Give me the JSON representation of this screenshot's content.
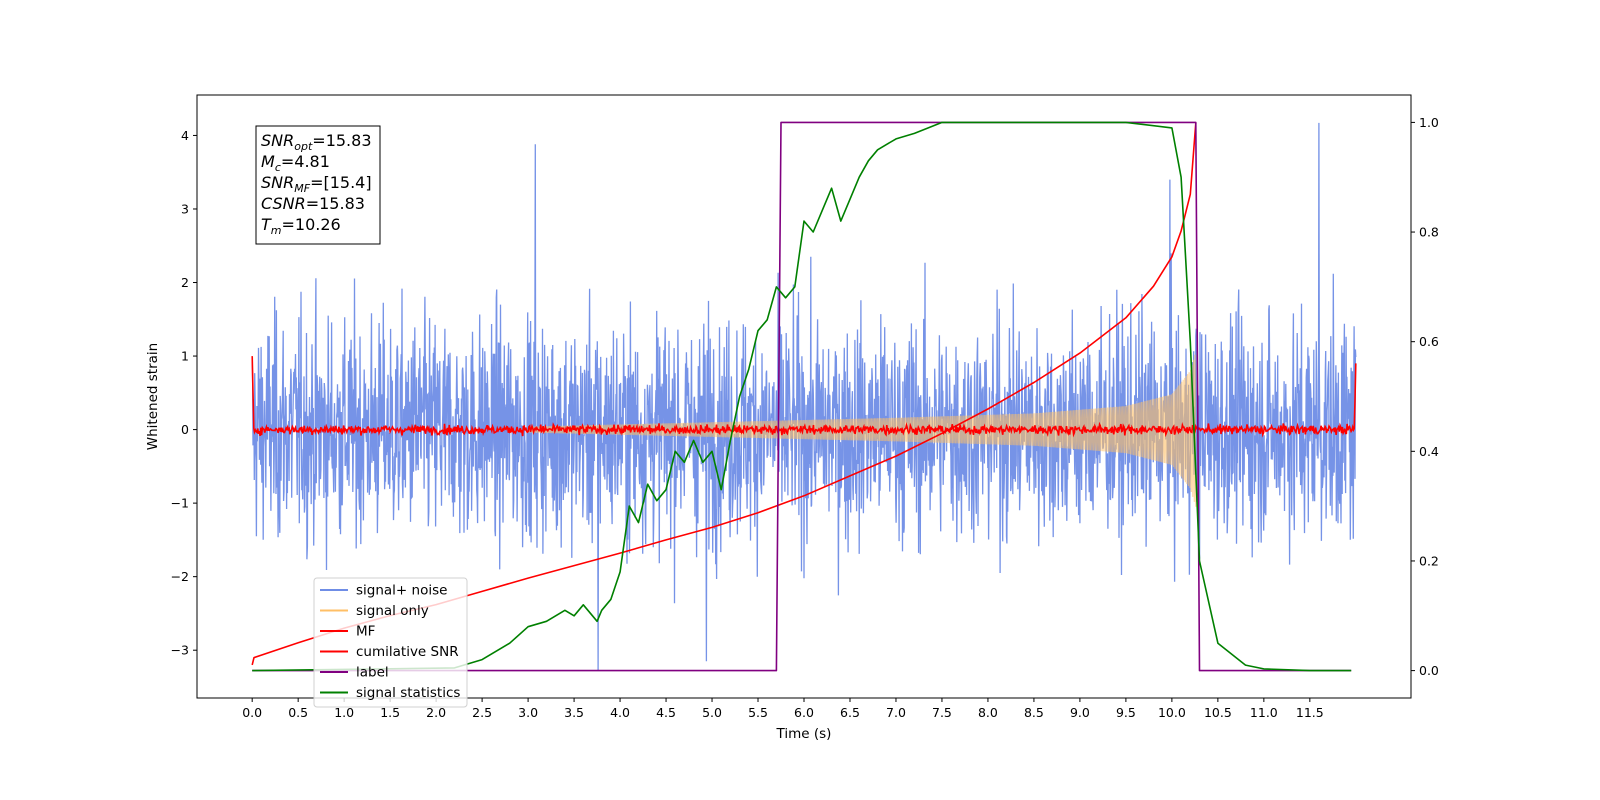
{
  "chart_data": {
    "type": "line",
    "title": "",
    "xlabel": "Time (s)",
    "ylabel": "Whitened strain",
    "xlim": [
      -0.6,
      12.6
    ],
    "ylim": [
      -3.65,
      4.55
    ],
    "y2lim": [
      -0.05,
      1.05
    ],
    "x_ticks": [
      0.0,
      0.5,
      1.0,
      1.5,
      2.0,
      2.5,
      3.0,
      3.5,
      4.0,
      4.5,
      5.0,
      5.5,
      6.0,
      6.5,
      7.0,
      7.5,
      8.0,
      8.5,
      9.0,
      9.5,
      10.0,
      10.5,
      11.0,
      11.5
    ],
    "x_tick_labels": [
      "0.0",
      "0.5",
      "1.0",
      "1.5",
      "2.0",
      "2.5",
      "3.0",
      "3.5",
      "4.0",
      "4.5",
      "5.0",
      "5.5",
      "6.0",
      "6.5",
      "7.0",
      "7.5",
      "8.0",
      "8.5",
      "9.0",
      "9.5",
      "10.0",
      "10.5",
      "11.0",
      "11.5"
    ],
    "y_ticks": [
      -3,
      -2,
      -1,
      0,
      1,
      2,
      3,
      4
    ],
    "y_tick_labels": [
      "−3",
      "−2",
      "−1",
      "0",
      "1",
      "2",
      "3",
      "4"
    ],
    "y2_ticks": [
      0.0,
      0.2,
      0.4,
      0.6,
      0.8,
      1.0
    ],
    "y2_tick_labels": [
      "0.0",
      "0.2",
      "0.4",
      "0.6",
      "0.8",
      "1.0"
    ],
    "grid": false,
    "legend_position": "lower-left",
    "legend": [
      {
        "label": "signal+ noise",
        "color": "#6f8de6"
      },
      {
        "label": "signal only",
        "color": "#ffbf66"
      },
      {
        "label": "MF",
        "color": "#ff0000"
      },
      {
        "label": "cumilative SNR",
        "color": "#ff0000"
      },
      {
        "label": "label",
        "color": "#800080"
      },
      {
        "label": "signal statistics",
        "color": "#008000"
      }
    ],
    "annotation": [
      {
        "sym": "SNR",
        "sub": "opt",
        "rest": "=15.83"
      },
      {
        "sym": "M",
        "sub": "c",
        "rest": "=4.81"
      },
      {
        "sym": "SNR",
        "sub": "MF",
        "rest": "=[15.4]"
      },
      {
        "sym": "CSNR",
        "sub": "",
        "rest": "=15.83"
      },
      {
        "sym": "T",
        "sub": "m",
        "rest": "=10.26"
      }
    ],
    "series": [
      {
        "name": "signal+ noise",
        "axis": "left",
        "color": "#6f8de6",
        "style": "noise",
        "x_range": [
          0.0,
          12.0
        ],
        "typical_band": [
          -1.7,
          1.7
        ],
        "extreme_max": 4.17,
        "extreme_min": -3.27,
        "spikes": [
          [
            3.08,
            3.88
          ],
          [
            11.6,
            4.17
          ],
          [
            9.98,
            3.4
          ],
          [
            3.76,
            -3.27
          ],
          [
            4.94,
            -3.15
          ]
        ]
      },
      {
        "name": "signal only",
        "axis": "left",
        "color": "#ffbf66",
        "style": "chirp",
        "x_range": [
          3.0,
          10.26
        ],
        "amplitude": [
          [
            3.0,
            0.04
          ],
          [
            5.0,
            0.1
          ],
          [
            7.0,
            0.16
          ],
          [
            8.5,
            0.22
          ],
          [
            9.5,
            0.32
          ],
          [
            10.0,
            0.48
          ],
          [
            10.2,
            0.8
          ],
          [
            10.26,
            1.05
          ]
        ]
      },
      {
        "name": "MF",
        "axis": "left",
        "color": "#ff0000",
        "style": "noise",
        "x_range": [
          0.0,
          12.0
        ],
        "typical_band": [
          -0.08,
          0.08
        ],
        "edge_values": [
          [
            0.0,
            1.0
          ],
          [
            12.0,
            0.9
          ]
        ]
      },
      {
        "name": "cumilative SNR",
        "axis": "left",
        "color": "#ff0000",
        "x": [
          0.0,
          0.02,
          0.5,
          1.0,
          1.5,
          2.0,
          2.5,
          3.0,
          3.5,
          4.0,
          4.5,
          5.0,
          5.5,
          6.0,
          6.5,
          7.0,
          7.5,
          8.0,
          8.5,
          9.0,
          9.5,
          9.8,
          10.0,
          10.1,
          10.2,
          10.26
        ],
        "y": [
          -3.2,
          -3.1,
          -2.9,
          -2.7,
          -2.53,
          -2.38,
          -2.2,
          -2.02,
          -1.85,
          -1.68,
          -1.5,
          -1.33,
          -1.13,
          -0.9,
          -0.63,
          -0.36,
          -0.05,
          0.28,
          0.64,
          1.04,
          1.52,
          1.95,
          2.35,
          2.7,
          3.2,
          4.17
        ]
      },
      {
        "name": "label",
        "axis": "right",
        "color": "#800080",
        "x": [
          0.0,
          5.7,
          5.75,
          10.26,
          10.3,
          11.95
        ],
        "y": [
          0.0,
          0.0,
          1.0,
          1.0,
          0.0,
          0.0
        ]
      },
      {
        "name": "signal statistics",
        "axis": "right",
        "color": "#008000",
        "x": [
          0.0,
          2.2,
          2.5,
          2.8,
          3.0,
          3.2,
          3.4,
          3.5,
          3.6,
          3.7,
          3.75,
          3.8,
          3.9,
          4.0,
          4.1,
          4.2,
          4.3,
          4.4,
          4.5,
          4.6,
          4.7,
          4.8,
          4.9,
          5.0,
          5.1,
          5.2,
          5.3,
          5.4,
          5.5,
          5.6,
          5.7,
          5.8,
          5.9,
          6.0,
          6.1,
          6.2,
          6.3,
          6.4,
          6.5,
          6.6,
          6.7,
          6.8,
          6.9,
          7.0,
          7.2,
          7.5,
          8.0,
          8.5,
          9.0,
          9.5,
          10.0,
          10.1,
          10.2,
          10.3,
          10.5,
          10.8,
          11.0,
          11.5,
          11.95
        ],
        "y": [
          0.0,
          0.005,
          0.02,
          0.05,
          0.08,
          0.09,
          0.11,
          0.1,
          0.12,
          0.1,
          0.09,
          0.11,
          0.13,
          0.18,
          0.3,
          0.27,
          0.34,
          0.31,
          0.33,
          0.4,
          0.38,
          0.42,
          0.38,
          0.4,
          0.33,
          0.42,
          0.5,
          0.55,
          0.62,
          0.64,
          0.7,
          0.68,
          0.7,
          0.82,
          0.8,
          0.84,
          0.88,
          0.82,
          0.86,
          0.9,
          0.93,
          0.95,
          0.96,
          0.97,
          0.98,
          1.0,
          1.0,
          1.0,
          1.0,
          1.0,
          0.99,
          0.9,
          0.6,
          0.2,
          0.05,
          0.01,
          0.003,
          0.0,
          0.0
        ]
      }
    ]
  }
}
